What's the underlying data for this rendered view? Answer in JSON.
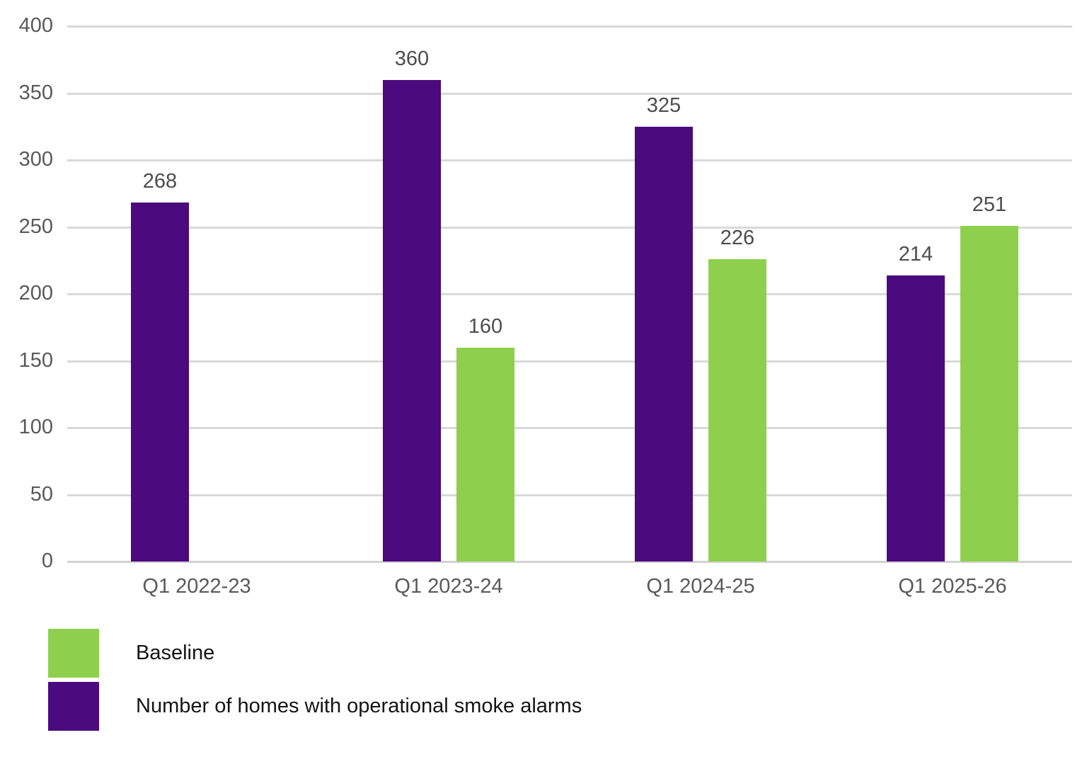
{
  "chart_data": {
    "type": "bar",
    "title": "",
    "xlabel": "",
    "ylabel": "",
    "categories": [
      "Q1 2022-23",
      "Q1 2023-24",
      "Q1 2024-25",
      "Q1 2025-26"
    ],
    "series": [
      {
        "name": "Number of homes with operational smoke alarms",
        "color": "#4b0a7d",
        "values": [
          268,
          360,
          325,
          214
        ]
      },
      {
        "name": "Baseline",
        "color": "#8ed04d",
        "values": [
          null,
          160,
          226,
          251
        ]
      }
    ],
    "data_labels": [
      [
        "268",
        "360",
        "325",
        "214"
      ],
      [
        null,
        "160",
        "226",
        "251"
      ]
    ],
    "ylim": [
      0,
      400
    ],
    "yticks": [
      0,
      50,
      100,
      150,
      200,
      250,
      300,
      350,
      400
    ],
    "grid": true,
    "legend_position": "bottom-left",
    "legend": [
      {
        "label": "Baseline",
        "color": "#8ed04d"
      },
      {
        "label": "Number of homes with operational smoke alarms",
        "color": "#4b0a7d"
      }
    ]
  },
  "colors": {
    "purple": "#4b0a7d",
    "green": "#8ed04d",
    "gridline": "#d9d9d9",
    "axis_tick_text": "#595959",
    "value_label_text": "#4d4d4d",
    "legend_text": "#141414",
    "background": "#ffffff"
  }
}
